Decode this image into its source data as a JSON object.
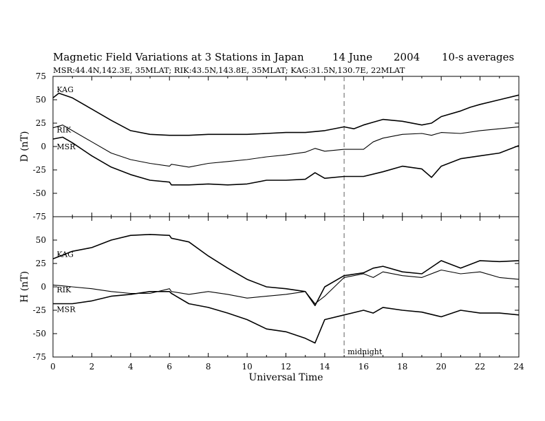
{
  "header": {
    "title": "Magnetic Field Variations at 3 Stations in Japan",
    "date": "14 June",
    "year": "2004",
    "averaging": "10-s averages",
    "stations": "MSR:44.4N,142.3E, 35MLAT;  RIK:43.5N,143.8E, 35MLAT;  KAG:31.5N,130.7E, 22MLAT"
  },
  "chart_data": [
    {
      "type": "line",
      "panel": "D",
      "ylabel": "D (nT)",
      "ylim": [
        -75,
        75
      ],
      "yticks": [
        75,
        50,
        25,
        0,
        -25,
        -50,
        -75
      ],
      "xlim": [
        0,
        24
      ],
      "series": [
        {
          "name": "KAG",
          "x": [
            0,
            0.3,
            1,
            2,
            3,
            4,
            5,
            6,
            7,
            8,
            9,
            10,
            11,
            12,
            13,
            14,
            15,
            15.5,
            16,
            16.5,
            17,
            18,
            19,
            19.5,
            20,
            21,
            21.5,
            22,
            23,
            24
          ],
          "values": [
            52,
            57,
            52,
            40,
            28,
            17,
            13,
            12,
            12,
            13,
            13,
            13,
            14,
            15,
            15,
            17,
            21,
            19,
            23,
            26,
            29,
            27,
            23,
            25,
            32,
            38,
            42,
            45,
            50,
            55
          ]
        },
        {
          "name": "RIK",
          "x": [
            0,
            0.5,
            1,
            2,
            3,
            4,
            5,
            6,
            6.1,
            7,
            8,
            9,
            10,
            11,
            12,
            13,
            13.5,
            14,
            15,
            16,
            16.5,
            17,
            18,
            19,
            19.5,
            20,
            21,
            22,
            23,
            24
          ],
          "values": [
            20,
            23,
            17,
            5,
            -7,
            -14,
            -18,
            -21,
            -19,
            -22,
            -18,
            -16,
            -14,
            -11,
            -9,
            -6,
            -2,
            -5,
            -3,
            -3,
            5,
            9,
            13,
            14,
            12,
            15,
            14,
            17,
            19,
            21
          ]
        },
        {
          "name": "MSR",
          "x": [
            0,
            0.5,
            1,
            2,
            3,
            4,
            5,
            6,
            6.1,
            7,
            8,
            9,
            10,
            11,
            12,
            13,
            13.5,
            14,
            15,
            16,
            17,
            18,
            19,
            19.5,
            20,
            21,
            22,
            23,
            24
          ],
          "values": [
            8,
            10,
            4,
            -10,
            -22,
            -30,
            -36,
            -38,
            -41,
            -41,
            -40,
            -41,
            -40,
            -36,
            -36,
            -35,
            -28,
            -34,
            -32,
            -32,
            -27,
            -21,
            -24,
            -33,
            -21,
            -13,
            -10,
            -7,
            1
          ]
        }
      ],
      "annotations": [
        {
          "x": 15,
          "style": "dashed"
        }
      ]
    },
    {
      "type": "line",
      "panel": "H",
      "ylabel": "H (nT)",
      "ylim": [
        -75,
        75
      ],
      "yticks": [
        50,
        25,
        0,
        -25,
        -50,
        -75
      ],
      "xlim": [
        0,
        24
      ],
      "xticks": [
        0,
        2,
        4,
        6,
        8,
        10,
        12,
        14,
        16,
        18,
        20,
        22,
        24
      ],
      "xticklabels": [
        "0",
        "2",
        "4",
        "6",
        "8",
        "10",
        "12",
        "14",
        "16",
        "18",
        "20",
        "22",
        "24"
      ],
      "xlabel": "Universal Time",
      "series": [
        {
          "name": "KAG",
          "x": [
            0,
            1,
            2,
            3,
            4,
            5,
            6,
            6.1,
            7,
            8,
            9,
            10,
            11,
            12,
            13,
            13.5,
            14,
            15,
            16,
            16.5,
            17,
            18,
            19,
            20,
            21,
            22,
            23,
            24
          ],
          "values": [
            30,
            38,
            42,
            50,
            55,
            56,
            55,
            52,
            48,
            33,
            20,
            8,
            0,
            -2,
            -5,
            -20,
            0,
            12,
            15,
            20,
            22,
            16,
            14,
            28,
            20,
            28,
            27,
            28
          ]
        },
        {
          "name": "RIK",
          "x": [
            0,
            0.5,
            1,
            2,
            3,
            4,
            5,
            6,
            6.1,
            7,
            8,
            9,
            10,
            11,
            12,
            13,
            13.5,
            14,
            15,
            16,
            16.5,
            17,
            18,
            19,
            20,
            21,
            22,
            23,
            24
          ],
          "values": [
            2,
            1,
            0,
            -2,
            -5,
            -7,
            -7,
            -2,
            -5,
            -8,
            -5,
            -8,
            -12,
            -10,
            -8,
            -5,
            -18,
            -10,
            10,
            14,
            10,
            16,
            12,
            10,
            18,
            14,
            16,
            10,
            8
          ]
        },
        {
          "name": "MSR",
          "x": [
            0,
            1,
            2,
            3,
            4,
            5,
            6,
            6.1,
            7,
            8,
            9,
            10,
            11,
            12,
            13,
            13.5,
            14,
            15,
            16,
            16.5,
            17,
            18,
            19,
            20,
            21,
            22,
            23,
            24
          ],
          "values": [
            -18,
            -18,
            -15,
            -10,
            -8,
            -5,
            -5,
            -7,
            -18,
            -22,
            -28,
            -35,
            -45,
            -48,
            -55,
            -60,
            -35,
            -30,
            -25,
            -28,
            -22,
            -25,
            -27,
            -32,
            -25,
            -28,
            -28,
            -30
          ]
        }
      ],
      "annotations": [
        {
          "x": 15,
          "label": "midnight",
          "style": "dashed"
        }
      ]
    }
  ]
}
